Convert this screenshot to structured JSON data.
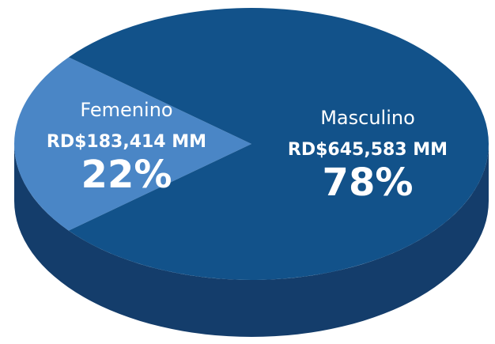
{
  "chart_data": {
    "type": "pie",
    "categories": [
      "Femenino",
      "Masculino"
    ],
    "values": [
      22,
      78
    ],
    "value_labels": [
      "22%",
      "78%"
    ],
    "amount_labels": [
      "RD$183,414 MM",
      "RD$645,583 MM"
    ],
    "colors": [
      "#4a86c6",
      "#12528a"
    ],
    "side_color": "#143d6b"
  }
}
